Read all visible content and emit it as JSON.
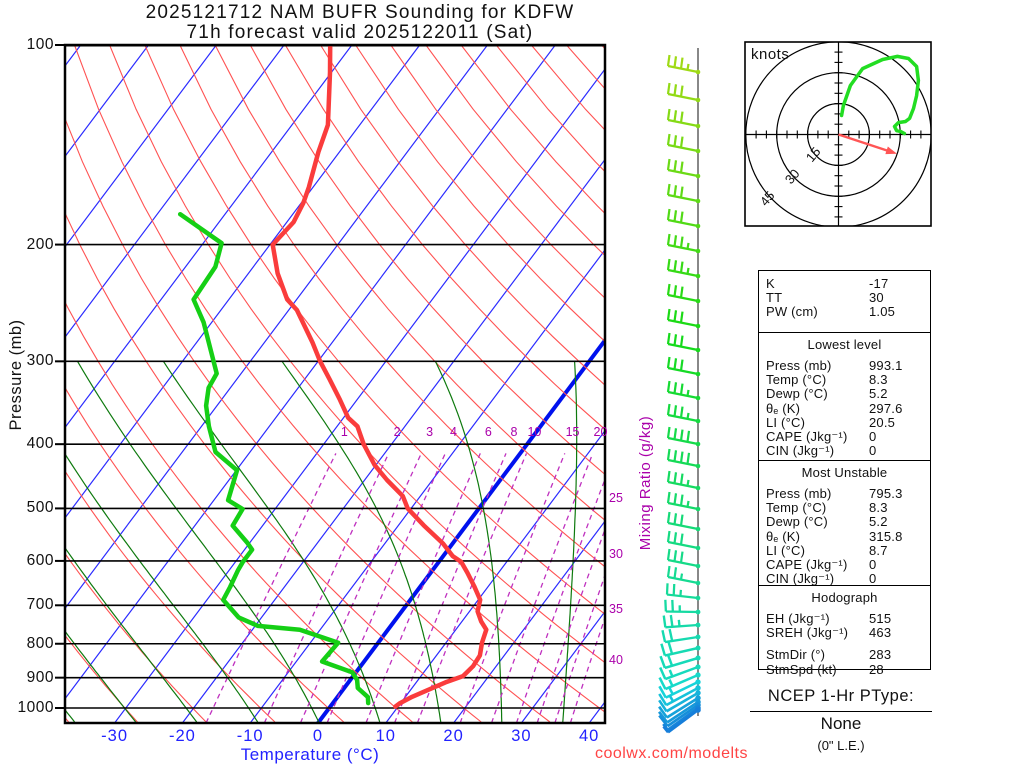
{
  "title": {
    "line1": "2025121712 NAM BUFR Sounding for KDFW",
    "line2": "71h forecast valid 2025122011 (Sat)"
  },
  "watermark": "coolwx.com/modelts",
  "axes": {
    "pressure_label": "Pressure (mb)",
    "temperature_label": "Temperature (°C)",
    "mixing_ratio_label": "Mixing Ratio (g/kg)",
    "pressure_ticks": [
      100,
      200,
      300,
      400,
      500,
      600,
      700,
      800,
      900,
      1000
    ],
    "temperature_ticks": [
      -30,
      -20,
      -10,
      0,
      10,
      20,
      30,
      40
    ],
    "mixing_ratio_top_labels": [
      1,
      2,
      3,
      4,
      6,
      8,
      10,
      15,
      20
    ],
    "mixing_ratio_right_labels": [
      25,
      30,
      35,
      40
    ]
  },
  "chart_data": {
    "type": "skewt-log-p sounding",
    "pressure_range_mb": [
      100,
      1050
    ],
    "temperature_axis_c": [
      -40,
      45
    ],
    "isotherm_step_c": 10,
    "highlighted_isotherm_c": 0,
    "temperature_profile": [
      [
        995,
        9.6
      ],
      [
        983,
        9.9
      ],
      [
        962,
        11.0
      ],
      [
        935,
        12.9
      ],
      [
        915,
        14.3
      ],
      [
        895,
        16.2
      ],
      [
        865,
        16.6
      ],
      [
        833,
        16.4
      ],
      [
        797,
        15.3
      ],
      [
        762,
        14.5
      ],
      [
        740,
        12.8
      ],
      [
        715,
        11.2
      ],
      [
        687,
        10.3
      ],
      [
        655,
        7.9
      ],
      [
        625,
        5.4
      ],
      [
        602,
        3.3
      ],
      [
        590,
        1.4
      ],
      [
        565,
        -1.4
      ],
      [
        530,
        -6.3
      ],
      [
        500,
        -10.5
      ],
      [
        479,
        -12.6
      ],
      [
        453,
        -16.7
      ],
      [
        430,
        -20.2
      ],
      [
        400,
        -24.1
      ],
      [
        376,
        -27.0
      ],
      [
        365,
        -29.3
      ],
      [
        343,
        -32.5
      ],
      [
        320,
        -36.2
      ],
      [
        300,
        -39.7
      ],
      [
        281,
        -42.9
      ],
      [
        251,
        -48.8
      ],
      [
        242,
        -51.4
      ],
      [
        221,
        -55.7
      ],
      [
        200,
        -59.6
      ],
      [
        185,
        -59.0
      ],
      [
        173,
        -59.7
      ],
      [
        164,
        -60.6
      ],
      [
        145,
        -63.1
      ],
      [
        132,
        -64.7
      ],
      [
        110,
        -70.2
      ],
      [
        100,
        -73.2
      ]
    ],
    "dewpoint_profile": [
      [
        983,
        5.2
      ],
      [
        963,
        4.5
      ],
      [
        933,
        2.0
      ],
      [
        907,
        1.0
      ],
      [
        883,
        -0.6
      ],
      [
        851,
        -6.2
      ],
      [
        797,
        -5.9
      ],
      [
        762,
        -13.0
      ],
      [
        752,
        -19.6
      ],
      [
        730,
        -23.4
      ],
      [
        687,
        -27.6
      ],
      [
        657,
        -28.0
      ],
      [
        620,
        -28.7
      ],
      [
        602,
        -28.9
      ],
      [
        577,
        -28.9
      ],
      [
        563,
        -30.4
      ],
      [
        531,
        -34.4
      ],
      [
        501,
        -34.8
      ],
      [
        486,
        -37.9
      ],
      [
        438,
        -39.9
      ],
      [
        411,
        -45.1
      ],
      [
        376,
        -48.9
      ],
      [
        350,
        -51.6
      ],
      [
        329,
        -53.2
      ],
      [
        313,
        -53.6
      ],
      [
        262,
        -61.2
      ],
      [
        242,
        -65.2
      ],
      [
        216,
        -65.6
      ],
      [
        199,
        -67.3
      ],
      [
        180,
        -76.6
      ]
    ],
    "hodograph_trace_kt": [
      [
        1.5,
        -9.2
      ],
      [
        2.4,
        -14.1
      ],
      [
        5.8,
        -23.8
      ],
      [
        11.7,
        -32.0
      ],
      [
        21.4,
        -36.4
      ],
      [
        28.6,
        -37.9
      ],
      [
        34.0,
        -36.9
      ],
      [
        37.9,
        -33.0
      ],
      [
        38.8,
        -26.2
      ],
      [
        37.9,
        -18.9
      ],
      [
        36.4,
        -12.6
      ],
      [
        34.5,
        -7.8
      ],
      [
        32.5,
        -6.3
      ],
      [
        29.1,
        -5.8
      ],
      [
        27.2,
        -3.9
      ],
      [
        28.2,
        -1.9
      ],
      [
        30.1,
        -1.5
      ],
      [
        32.0,
        -0.5
      ]
    ],
    "storm_motion_kt": [
      25.2,
      8.3
    ],
    "wind_barbs": [
      [
        72,
        35
      ],
      [
        100,
        30
      ],
      [
        126,
        30
      ],
      [
        151,
        30
      ],
      [
        176,
        30
      ],
      [
        201,
        30
      ],
      [
        226,
        30
      ],
      [
        251,
        35
      ],
      [
        276,
        35
      ],
      [
        301,
        30
      ],
      [
        326,
        30
      ],
      [
        350,
        30
      ],
      [
        374,
        30
      ],
      [
        398,
        35
      ],
      [
        421,
        35
      ],
      [
        444,
        40
      ],
      [
        466,
        40
      ],
      [
        488,
        35
      ],
      [
        509,
        35
      ],
      [
        529,
        30
      ],
      [
        548,
        30
      ],
      [
        566,
        30
      ],
      [
        583,
        25
      ],
      [
        598,
        25
      ],
      [
        612,
        25
      ],
      [
        625,
        25
      ],
      [
        637,
        20
      ],
      [
        648,
        20
      ],
      [
        658,
        20
      ],
      [
        667,
        15
      ],
      [
        675,
        15
      ],
      [
        682,
        15
      ],
      [
        688,
        15
      ],
      [
        693,
        10
      ],
      [
        698,
        10
      ],
      [
        702,
        10
      ],
      [
        705,
        10
      ],
      [
        708,
        5
      ],
      [
        710,
        5
      ]
    ]
  },
  "hodograph": {
    "unit_label": "knots",
    "ring_values": [
      15,
      30,
      45
    ]
  },
  "stats": {
    "sections": [
      {
        "rows": [
          [
            "K",
            "-17"
          ],
          [
            "TT",
            "30"
          ],
          [
            "PW (cm)",
            "1.05"
          ]
        ]
      },
      {
        "title": "Lowest level",
        "rows": [
          [
            "Press (mb)",
            "993.1"
          ],
          [
            "Temp (°C)",
            "8.3"
          ],
          [
            "Dewp (°C)",
            "5.2"
          ],
          [
            "θₑ (K)",
            "297.6"
          ],
          [
            "LI (°C)",
            "20.5"
          ],
          [
            "CAPE (Jkg⁻¹)",
            "0"
          ],
          [
            "CIN (Jkg⁻¹)",
            "0"
          ]
        ]
      },
      {
        "title": "Most Unstable",
        "rows": [
          [
            "Press (mb)",
            "795.3"
          ],
          [
            "Temp (°C)",
            "8.3"
          ],
          [
            "Dewp (°C)",
            "5.2"
          ],
          [
            "θₑ (K)",
            "315.8"
          ],
          [
            "LI (°C)",
            "8.7"
          ],
          [
            "CAPE (Jkg⁻¹)",
            "0"
          ],
          [
            "CIN (Jkg⁻¹)",
            "0"
          ]
        ]
      },
      {
        "title": "Hodograph",
        "rows": [
          [
            "EH (Jkg⁻¹)",
            "515"
          ],
          [
            "SREH (Jkg⁻¹)",
            "463"
          ]
        ],
        "rows2": [
          [
            "StmDir (°)",
            "283"
          ],
          [
            "StmSpd (kt)",
            "28"
          ]
        ]
      }
    ]
  },
  "ptype": {
    "heading": "NCEP 1-Hr PType:",
    "value": "None",
    "note": "(0\" L.E.)"
  },
  "colors": {
    "temperature_curve": "#fa3c3c",
    "dewpoint_curve": "#15cf15",
    "isotherm": "#2b2bff",
    "isotherm_zero": "#0011ee",
    "dry_adiabat": "#ff5252",
    "moist_adiabat": "#0e7a0e",
    "mixing_ratio": "#bf30bf",
    "pressure_line": "#000000",
    "hodograph_trace": "#22dd22",
    "storm_arrow": "#ff5555",
    "watermark": "#ff4444",
    "axis_blue": "#2222ff",
    "mixing_label": "#aa00aa"
  }
}
